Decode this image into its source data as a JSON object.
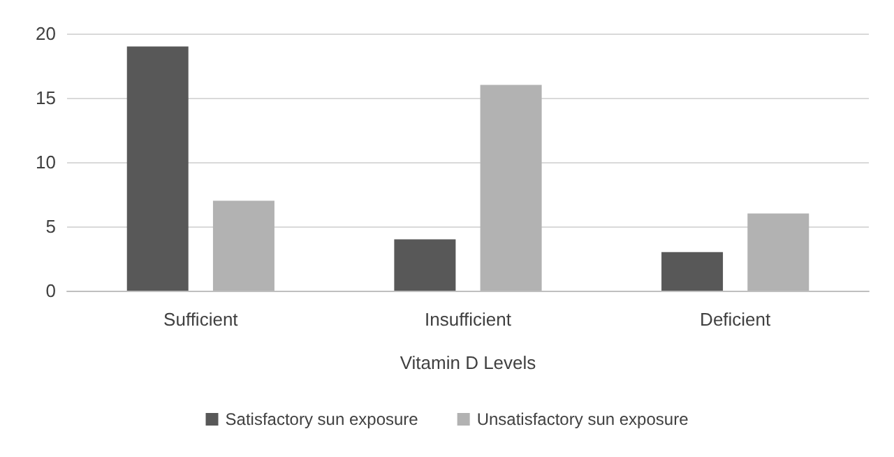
{
  "chart_data": {
    "type": "bar",
    "xlabel": "Vitamin D Levels",
    "categories": [
      "Sufficient",
      "Insufficient",
      "Deficient"
    ],
    "series": [
      {
        "name": "Satisfactory sun exposure",
        "color": "#585858",
        "values": [
          19,
          4,
          3
        ]
      },
      {
        "name": "Unsatisfactory sun exposure",
        "color": "#b2b2b2",
        "values": [
          7,
          16,
          6
        ]
      }
    ],
    "ylim": [
      0,
      20
    ],
    "yticks": [
      0,
      5,
      10,
      15,
      20
    ],
    "grid": "y",
    "legend": "bottom"
  }
}
